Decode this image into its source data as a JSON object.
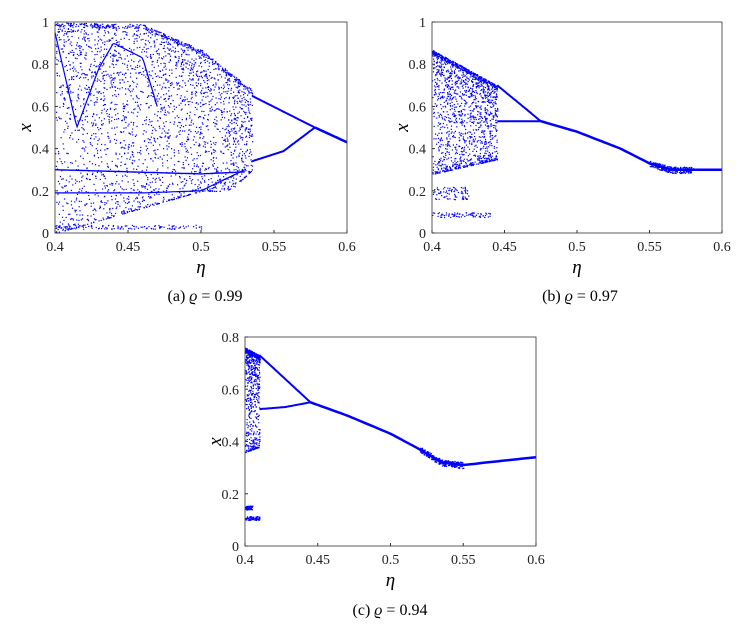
{
  "chart_data": [
    {
      "type": "scatter",
      "caption": {
        "label": "(a)",
        "param": "ϱ",
        "eq": "= 0.99"
      },
      "xlabel": "η",
      "ylabel": "x",
      "xlim": [
        0.4,
        0.6
      ],
      "ylim": [
        0,
        1
      ],
      "xticks": [
        "0.4",
        "0.45",
        "0.5",
        "0.55",
        "0.6"
      ],
      "yticks": [
        "0",
        "0.2",
        "0.4",
        "0.6",
        "0.8",
        "1"
      ],
      "grid": false,
      "color": "#0000ff",
      "regime": {
        "chaos_end": 0.535,
        "loop": [
          0.535,
          0.578
        ],
        "fixed_start": 0.578,
        "fixed_y_end": 0.43,
        "upper_envelope": [
          [
            0.4,
            1.0
          ],
          [
            0.46,
            0.99
          ],
          [
            0.5,
            0.87
          ],
          [
            0.535,
            0.68
          ]
        ],
        "lower_envelope": [
          [
            0.4,
            0.0
          ],
          [
            0.5,
            0.2
          ],
          [
            0.52,
            0.2
          ],
          [
            0.535,
            0.3
          ]
        ],
        "low_band": [
          [
            0.4,
            0.3
          ],
          [
            0.5,
            0.28
          ],
          [
            0.53,
            0.29
          ]
        ]
      }
    },
    {
      "type": "scatter",
      "caption": {
        "label": "(b)",
        "param": "ϱ",
        "eq": "= 0.97"
      },
      "xlabel": "η",
      "ylabel": "x",
      "xlim": [
        0.4,
        0.6
      ],
      "ylim": [
        0,
        1
      ],
      "xticks": [
        "0.4",
        "0.45",
        "0.5",
        "0.55",
        "0.6"
      ],
      "yticks": [
        "0",
        "0.2",
        "0.4",
        "0.6",
        "0.8",
        "1"
      ],
      "grid": false,
      "color": "#0000ff",
      "regime": {
        "chaos_end": 0.445,
        "loop": [
          0.445,
          0.475
        ],
        "fixed_start": 0.475,
        "upper_envelope": [
          [
            0.4,
            0.87
          ],
          [
            0.445,
            0.7
          ]
        ],
        "lower_envelope": [
          [
            0.4,
            0.28
          ],
          [
            0.445,
            0.35
          ]
        ],
        "fixed_curve": [
          [
            0.475,
            0.53
          ],
          [
            0.5,
            0.48
          ],
          [
            0.53,
            0.4
          ],
          [
            0.55,
            0.33
          ],
          [
            0.565,
            0.3
          ],
          [
            0.6,
            0.3
          ]
        ],
        "low_clusters": [
          [
            0.4,
            0.425,
            0.16,
            0.22
          ],
          [
            0.4,
            0.44,
            0.075,
            0.1
          ]
        ]
      }
    },
    {
      "type": "scatter",
      "caption": {
        "label": "(c)",
        "param": "ϱ",
        "eq": "= 0.94"
      },
      "xlabel": "η",
      "ylabel": "x",
      "xlim": [
        0.4,
        0.6
      ],
      "ylim": [
        0,
        0.8
      ],
      "xticks": [
        "0.4",
        "0.45",
        "0.5",
        "0.55",
        "0.6"
      ],
      "yticks": [
        "0",
        "0.2",
        "0.4",
        "0.6",
        "0.8"
      ],
      "grid": false,
      "color": "#0000ff",
      "regime": {
        "chaos_end": 0.41,
        "loop": [
          0.41,
          0.445
        ],
        "fixed_start": 0.445,
        "upper_envelope": [
          [
            0.4,
            0.76
          ],
          [
            0.41,
            0.73
          ]
        ],
        "lower_envelope": [
          [
            0.4,
            0.36
          ],
          [
            0.41,
            0.38
          ]
        ],
        "fixed_curve": [
          [
            0.445,
            0.55
          ],
          [
            0.47,
            0.5
          ],
          [
            0.5,
            0.43
          ],
          [
            0.52,
            0.37
          ],
          [
            0.535,
            0.32
          ],
          [
            0.55,
            0.31
          ],
          [
            0.6,
            0.34
          ]
        ],
        "low_clusters": [
          [
            0.4,
            0.41,
            0.1,
            0.115
          ],
          [
            0.4,
            0.405,
            0.14,
            0.155
          ]
        ]
      }
    }
  ]
}
